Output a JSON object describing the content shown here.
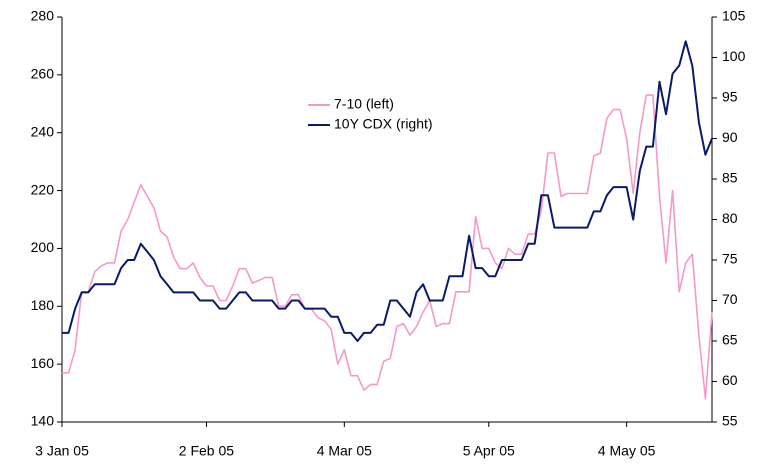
{
  "chart_data": {
    "type": "line",
    "categories": [
      "3 Jan 05",
      null,
      null,
      null,
      null,
      null,
      null,
      null,
      null,
      null,
      null,
      null,
      null,
      null,
      null,
      null,
      null,
      null,
      null,
      null,
      null,
      null,
      "2 Feb 05",
      null,
      null,
      null,
      null,
      null,
      null,
      null,
      null,
      null,
      null,
      null,
      null,
      null,
      null,
      null,
      null,
      null,
      null,
      null,
      null,
      "4 Mar 05",
      null,
      null,
      null,
      null,
      null,
      null,
      null,
      null,
      null,
      null,
      null,
      null,
      null,
      null,
      null,
      null,
      null,
      null,
      null,
      null,
      null,
      "5 Apr 05",
      null,
      null,
      null,
      null,
      null,
      null,
      null,
      null,
      null,
      null,
      null,
      null,
      null,
      null,
      null,
      null,
      null,
      null,
      null,
      null,
      "4 May 05",
      null,
      null,
      null,
      null,
      null,
      null,
      null,
      null,
      null,
      null,
      null,
      null,
      null
    ],
    "series": [
      {
        "name": "7-10 (left)",
        "color": "#f59ac8",
        "axis": "y",
        "values": [
          157,
          157,
          165,
          185,
          185,
          192,
          194,
          195,
          195,
          206,
          210,
          216,
          222,
          218,
          214,
          206,
          204,
          197,
          193,
          193,
          195,
          190,
          187,
          187,
          182,
          182,
          187,
          193,
          193,
          188,
          189,
          190,
          190,
          180,
          180,
          184,
          184,
          179,
          179,
          176,
          175,
          172,
          160,
          165,
          156,
          156,
          151,
          153,
          153,
          161,
          162,
          173,
          174,
          170,
          173,
          178,
          182,
          173,
          174,
          174,
          185,
          185,
          185,
          211,
          200,
          200,
          195,
          193,
          200,
          198,
          198,
          205,
          205,
          213,
          233,
          233,
          218,
          219,
          219,
          219,
          219,
          232,
          233,
          245,
          248,
          248,
          238,
          219,
          240,
          253,
          253,
          218,
          195,
          220,
          185,
          195,
          198,
          170,
          148,
          178
        ]
      },
      {
        "name": "10Y CDX (right)",
        "color": "#0a1a6b",
        "axis": "y2",
        "values": [
          66,
          66,
          69,
          71,
          71,
          72,
          72,
          72,
          72,
          74,
          75,
          75,
          77,
          76,
          75,
          73,
          72,
          71,
          71,
          71,
          71,
          70,
          70,
          70,
          69,
          69,
          70,
          71,
          71,
          70,
          70,
          70,
          70,
          69,
          69,
          70,
          70,
          69,
          69,
          69,
          69,
          68,
          68,
          66,
          66,
          65,
          66,
          66,
          67,
          67,
          70,
          70,
          69,
          68,
          71,
          72,
          70,
          70,
          70,
          73,
          73,
          73,
          78,
          74,
          74,
          73,
          73,
          75,
          75,
          75,
          75,
          77,
          77,
          83,
          83,
          79,
          79,
          79,
          79,
          79,
          79,
          81,
          81,
          83,
          84,
          84,
          84,
          80,
          86,
          89,
          89,
          97,
          93,
          98,
          99,
          102,
          99,
          92,
          88,
          90
        ]
      }
    ],
    "ylim": [
      140,
      280
    ],
    "yticks": [
      140,
      160,
      180,
      200,
      220,
      240,
      260,
      280
    ],
    "y2lim": [
      55,
      105
    ],
    "y2ticks": [
      55,
      60,
      65,
      70,
      75,
      80,
      85,
      90,
      95,
      100,
      105
    ],
    "grid": false
  }
}
